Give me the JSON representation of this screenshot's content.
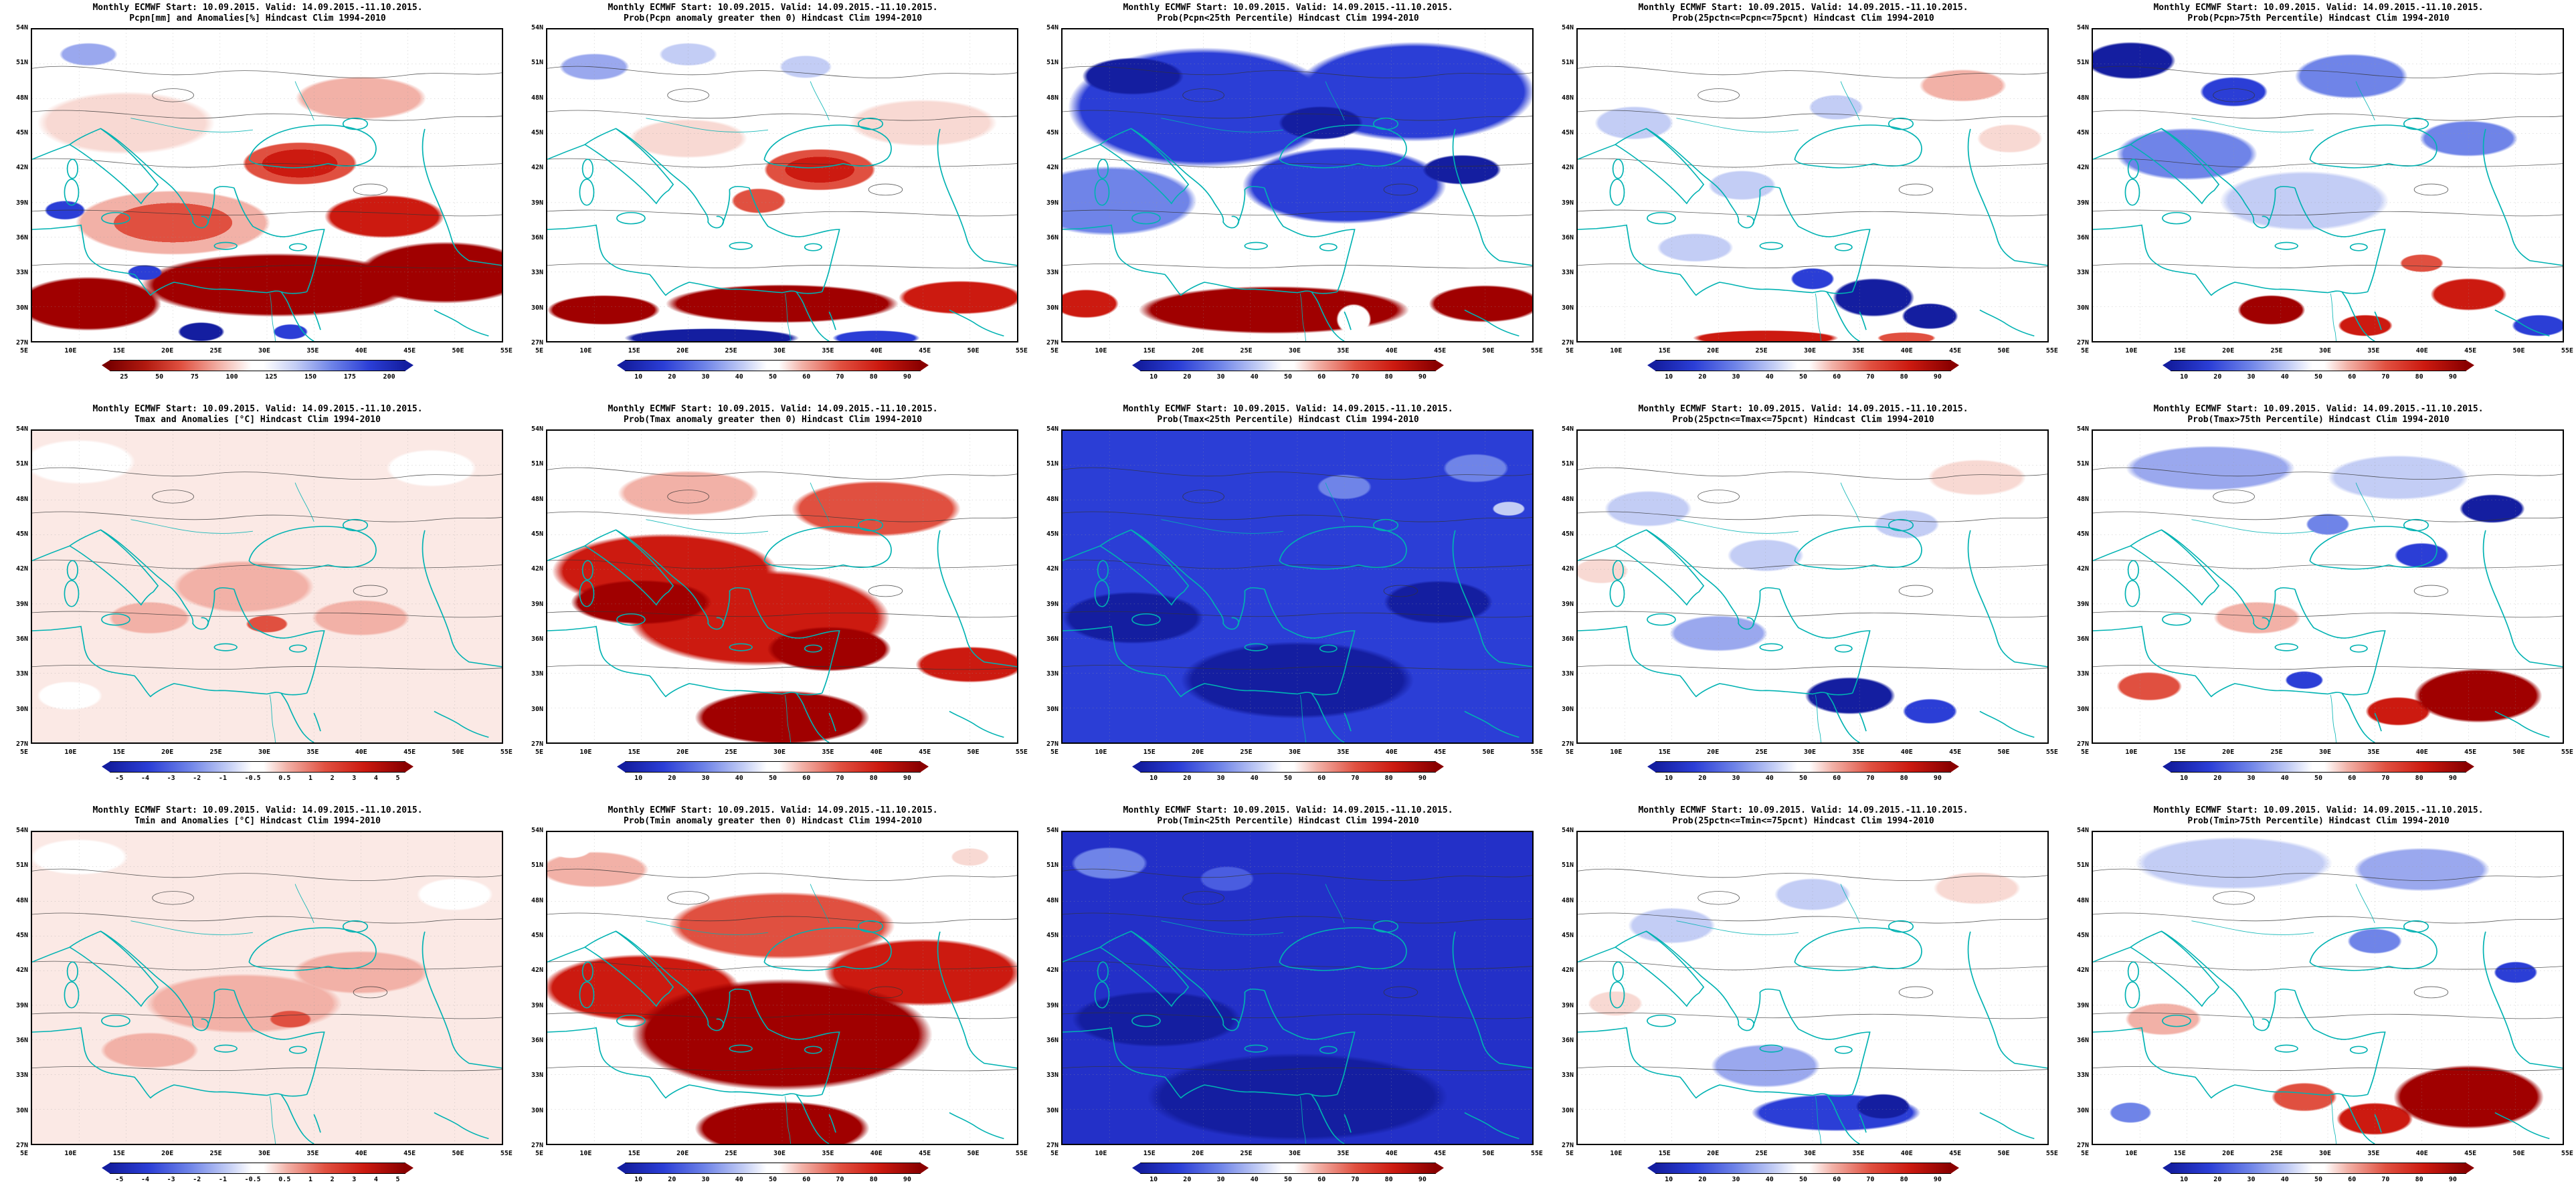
{
  "page": {
    "description": "Grid of 15 ECMWF monthly forecast maps (precipitation, Tmax, Tmin) over Europe / Mediterranean, 5E-55E, 27N-54N"
  },
  "axes": {
    "lat": [
      "54N",
      "51N",
      "48N",
      "45N",
      "42N",
      "39N",
      "36N",
      "33N",
      "30N",
      "27N"
    ],
    "lon": [
      "5E",
      "10E",
      "15E",
      "20E",
      "25E",
      "30E",
      "35E",
      "40E",
      "45E",
      "50E",
      "55E"
    ]
  },
  "colorbars": {
    "pcpn": {
      "ticks": [
        "25",
        "50",
        "75",
        "100",
        "125",
        "150",
        "175",
        "200"
      ],
      "left_color": "#7a0000",
      "right_color": "#141ea0"
    },
    "prob": {
      "ticks": [
        "10",
        "20",
        "30",
        "40",
        "50",
        "60",
        "70",
        "80",
        "90"
      ],
      "left_color": "#141ea0",
      "right_color": "#8a0000"
    },
    "temp": {
      "ticks": [
        "-5",
        "-4",
        "-3",
        "-2",
        "-1",
        "-0.5",
        "0.5",
        "1",
        "2",
        "3",
        "4",
        "5"
      ],
      "left_color": "#141ea0",
      "right_color": "#8a0000"
    }
  },
  "panels": [
    {
      "title1": "Monthly ECMWF Start: 10.09.2015. Valid: 14.09.2015.-11.10.2015.",
      "title2": "Pcpn[mm] and Anomalies[%] Hindcast Clim 1994-2010",
      "colorbar": "pcpn"
    },
    {
      "title1": "Monthly ECMWF Start: 10.09.2015. Valid: 14.09.2015.-11.10.2015.",
      "title2": "Prob(Pcpn anomaly greater then 0) Hindcast Clim 1994-2010",
      "colorbar": "prob"
    },
    {
      "title1": "Monthly ECMWF Start: 10.09.2015. Valid: 14.09.2015.-11.10.2015.",
      "title2": "Prob(Pcpn<25th Percentile) Hindcast Clim 1994-2010",
      "colorbar": "prob"
    },
    {
      "title1": "Monthly ECMWF Start: 10.09.2015. Valid: 14.09.2015.-11.10.2015.",
      "title2": "Prob(25pctn<=Pcpn<=75pcnt) Hindcast Clim 1994-2010",
      "colorbar": "prob"
    },
    {
      "title1": "Monthly ECMWF Start: 10.09.2015. Valid: 14.09.2015.-11.10.2015.",
      "title2": "Prob(Pcpn>75th Percentile) Hindcast Clim 1994-2010",
      "colorbar": "prob"
    },
    {
      "title1": "Monthly ECMWF Start: 10.09.2015. Valid: 14.09.2015.-11.10.2015.",
      "title2": "Tmax and Anomalies [°C] Hindcast Clim 1994-2010",
      "colorbar": "temp"
    },
    {
      "title1": "Monthly ECMWF Start: 10.09.2015. Valid: 14.09.2015.-11.10.2015.",
      "title2": "Prob(Tmax anomaly greater then 0) Hindcast Clim 1994-2010",
      "colorbar": "prob"
    },
    {
      "title1": "Monthly ECMWF Start: 10.09.2015. Valid: 14.09.2015.-11.10.2015.",
      "title2": "Prob(Tmax<25th Percentile) Hindcast Clim 1994-2010",
      "colorbar": "prob"
    },
    {
      "title1": "Monthly ECMWF Start: 10.09.2015. Valid: 14.09.2015.-11.10.2015.",
      "title2": "Prob(25pctn<=Tmax<=75pcnt) Hindcast Clim 1994-2010",
      "colorbar": "prob"
    },
    {
      "title1": "Monthly ECMWF Start: 10.09.2015. Valid: 14.09.2015.-11.10.2015.",
      "title2": "Prob(Tmax>75th Percentile) Hindcast Clim 1994-2010",
      "colorbar": "prob"
    },
    {
      "title1": "Monthly ECMWF Start: 10.09.2015. Valid: 14.09.2015.-11.10.2015.",
      "title2": "Tmin and Anomalies [°C] Hindcast Clim 1994-2010",
      "colorbar": "temp"
    },
    {
      "title1": "Monthly ECMWF Start: 10.09.2015. Valid: 14.09.2015.-11.10.2015.",
      "title2": "Prob(Tmin anomaly greater then 0) Hindcast Clim 1994-2010",
      "colorbar": "prob"
    },
    {
      "title1": "Monthly ECMWF Start: 10.09.2015. Valid: 14.09.2015.-11.10.2015.",
      "title2": "Prob(Tmin<25th Percentile) Hindcast Clim 1994-2010",
      "colorbar": "prob"
    },
    {
      "title1": "Monthly ECMWF Start: 10.09.2015. Valid: 14.09.2015.-11.10.2015.",
      "title2": "Prob(25pctn<=Tmin<=75pcnt) Hindcast Clim 1994-2010",
      "colorbar": "prob"
    },
    {
      "title1": "Monthly ECMWF Start: 10.09.2015. Valid: 14.09.2015.-11.10.2015.",
      "title2": "Prob(Tmin>75th Percentile) Hindcast Clim 1994-2010",
      "colorbar": "prob"
    }
  ]
}
